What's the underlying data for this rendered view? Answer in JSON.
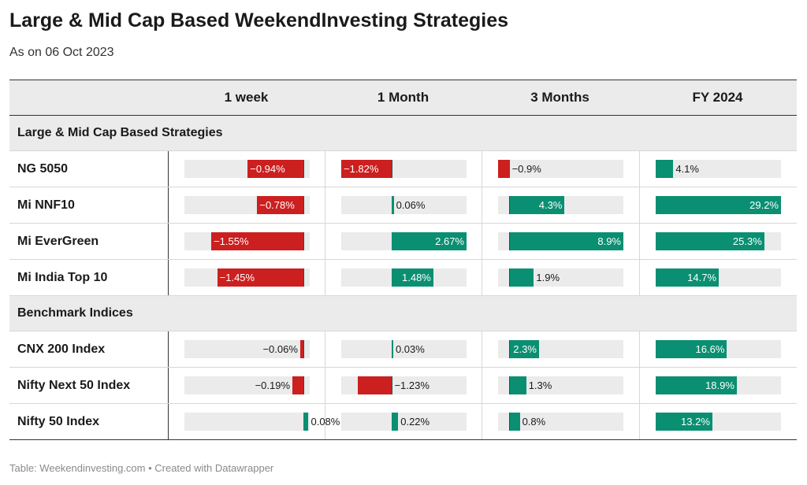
{
  "title": "Large & Mid Cap Based WeekendInvesting Strategies",
  "subtitle": "As on 06 Oct 2023",
  "footer": "Table: Weekendinvesting.com • Created with Datawrapper",
  "colors": {
    "positive": "#0a8f72",
    "negative": "#cc1f1f",
    "header_bg": "#ebebeb"
  },
  "chart_data": {
    "type": "table",
    "columns": [
      "1 week",
      "1 Month",
      "3 Months",
      "FY 2024"
    ],
    "column_ranges": [
      [
        -2,
        0.1
      ],
      [
        -1.82,
        2.67
      ],
      [
        -0.9,
        8.9
      ],
      [
        0,
        29.2
      ]
    ],
    "groups": [
      {
        "name": "Large & Mid Cap Based Strategies",
        "rows": [
          {
            "name": "NG 5050",
            "values": [
              -0.94,
              -1.82,
              -0.9,
              4.1
            ],
            "labels": [
              "−0.94%",
              "−1.82%",
              "−0.9%",
              "4.1%"
            ]
          },
          {
            "name": "Mi NNF10",
            "values": [
              -0.78,
              0.06,
              4.3,
              29.2
            ],
            "labels": [
              "−0.78%",
              "0.06%",
              "4.3%",
              "29.2%"
            ]
          },
          {
            "name": "Mi EverGreen",
            "values": [
              -1.55,
              2.67,
              8.9,
              25.3
            ],
            "labels": [
              "−1.55%",
              "2.67%",
              "8.9%",
              "25.3%"
            ]
          },
          {
            "name": "Mi India Top 10",
            "values": [
              -1.45,
              1.48,
              1.9,
              14.7
            ],
            "labels": [
              "−1.45%",
              "1.48%",
              "1.9%",
              "14.7%"
            ]
          }
        ]
      },
      {
        "name": "Benchmark Indices",
        "rows": [
          {
            "name": "CNX 200 Index",
            "values": [
              -0.06,
              0.03,
              2.3,
              16.6
            ],
            "labels": [
              "−0.06%",
              "0.03%",
              "2.3%",
              "16.6%"
            ]
          },
          {
            "name": "Nifty Next 50 Index",
            "values": [
              -0.19,
              -1.23,
              1.3,
              18.9
            ],
            "labels": [
              "−0.19%",
              "−1.23%",
              "1.3%",
              "18.9%"
            ]
          },
          {
            "name": "Nifty 50 Index",
            "values": [
              0.08,
              0.22,
              0.8,
              13.2
            ],
            "labels": [
              "0.08%",
              "0.22%",
              "0.8%",
              "13.2%"
            ]
          }
        ]
      }
    ]
  }
}
